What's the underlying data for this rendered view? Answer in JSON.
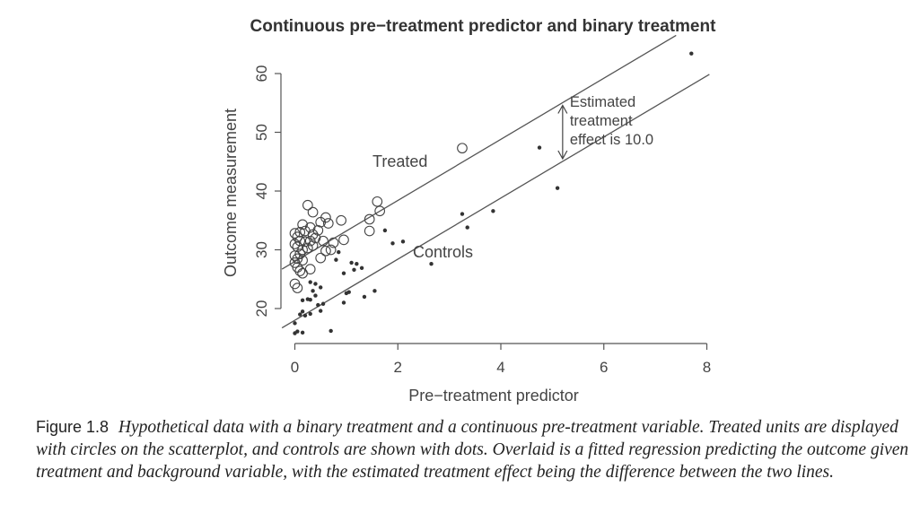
{
  "chart_data": {
    "type": "scatter",
    "title": "Continuous pre−treatment predictor and binary treatment",
    "xlabel": "Pre−treatment predictor",
    "ylabel": "Outcome measurement",
    "xlim": [
      0,
      8
    ],
    "ylim": [
      15,
      65
    ],
    "xticks": [
      0,
      2,
      4,
      6,
      8
    ],
    "yticks": [
      20,
      30,
      40,
      50,
      60
    ],
    "grid": false,
    "series": [
      {
        "label": "Treated",
        "marker": "open-circle",
        "points": [
          [
            0.0,
            32.8
          ],
          [
            0.05,
            32.2
          ],
          [
            0.1,
            33.0
          ],
          [
            0.15,
            34.3
          ],
          [
            0.2,
            33.2
          ],
          [
            0.0,
            31.0
          ],
          [
            0.05,
            30.5
          ],
          [
            0.1,
            31.5
          ],
          [
            0.15,
            30.0
          ],
          [
            0.2,
            31.4
          ],
          [
            0.25,
            30.3
          ],
          [
            0.0,
            29.0
          ],
          [
            0.05,
            28.5
          ],
          [
            0.1,
            29.3
          ],
          [
            0.15,
            28.2
          ],
          [
            0.0,
            27.8
          ],
          [
            0.05,
            27.0
          ],
          [
            0.1,
            26.4
          ],
          [
            0.15,
            26.0
          ],
          [
            0.0,
            24.2
          ],
          [
            0.05,
            23.5
          ],
          [
            0.25,
            37.6
          ],
          [
            0.35,
            36.4
          ],
          [
            0.3,
            33.8
          ],
          [
            0.35,
            32.6
          ],
          [
            0.4,
            32.0
          ],
          [
            0.3,
            31.5
          ],
          [
            0.35,
            30.7
          ],
          [
            0.45,
            33.3
          ],
          [
            0.5,
            34.7
          ],
          [
            0.6,
            35.5
          ],
          [
            0.65,
            34.5
          ],
          [
            0.55,
            31.5
          ],
          [
            0.6,
            29.8
          ],
          [
            0.5,
            28.6
          ],
          [
            0.7,
            30.0
          ],
          [
            0.3,
            26.7
          ],
          [
            0.75,
            31.2
          ],
          [
            0.9,
            35.0
          ],
          [
            0.95,
            31.7
          ],
          [
            1.45,
            35.2
          ],
          [
            1.6,
            38.2
          ],
          [
            1.65,
            36.6
          ],
          [
            1.45,
            33.2
          ],
          [
            3.25,
            47.3
          ]
        ]
      },
      {
        "label": "Controls",
        "marker": "dot",
        "points": [
          [
            0.0,
            17.5
          ],
          [
            0.05,
            16.1
          ],
          [
            0.0,
            15.8
          ],
          [
            0.15,
            15.9
          ],
          [
            0.1,
            19.0
          ],
          [
            0.15,
            19.5
          ],
          [
            0.2,
            18.8
          ],
          [
            0.3,
            19.1
          ],
          [
            0.15,
            21.4
          ],
          [
            0.25,
            21.6
          ],
          [
            0.3,
            21.5
          ],
          [
            0.35,
            23.0
          ],
          [
            0.4,
            22.2
          ],
          [
            0.3,
            24.5
          ],
          [
            0.4,
            24.2
          ],
          [
            0.45,
            20.6
          ],
          [
            0.5,
            19.6
          ],
          [
            0.55,
            20.8
          ],
          [
            0.5,
            23.6
          ],
          [
            0.7,
            16.2
          ],
          [
            0.8,
            28.3
          ],
          [
            0.85,
            29.6
          ],
          [
            0.95,
            26.0
          ],
          [
            0.95,
            21.0
          ],
          [
            1.0,
            22.6
          ],
          [
            1.05,
            22.8
          ],
          [
            1.1,
            27.8
          ],
          [
            1.15,
            26.6
          ],
          [
            1.2,
            27.6
          ],
          [
            1.3,
            26.9
          ],
          [
            1.35,
            22.0
          ],
          [
            1.55,
            23.0
          ],
          [
            1.75,
            33.3
          ],
          [
            1.9,
            31.1
          ],
          [
            2.1,
            31.4
          ],
          [
            2.65,
            27.6
          ],
          [
            3.25,
            36.1
          ],
          [
            3.35,
            33.8
          ],
          [
            3.85,
            36.6
          ],
          [
            4.75,
            47.4
          ],
          [
            5.1,
            40.5
          ],
          [
            7.7,
            63.4
          ]
        ]
      }
    ],
    "lines": [
      {
        "label": "Treated",
        "intercept": 28.0,
        "slope": 5.2
      },
      {
        "label": "Controls",
        "intercept": 18.0,
        "slope": 5.2
      }
    ],
    "annotations": {
      "treated_label": "Treated",
      "controls_label": "Controls",
      "effect_lines": [
        "Estimated",
        "treatment",
        "effect is 10.0"
      ]
    }
  },
  "caption": {
    "figure_label": "Figure 1.8",
    "text": "Hypothetical data with a binary treatment and a continuous pre-treatment variable. Treated units are displayed with circles on the scatterplot, and controls are shown with dots. Overlaid is a fitted regression predicting the outcome given treatment and background variable, with the estimated treatment effect being the difference between the two lines."
  }
}
